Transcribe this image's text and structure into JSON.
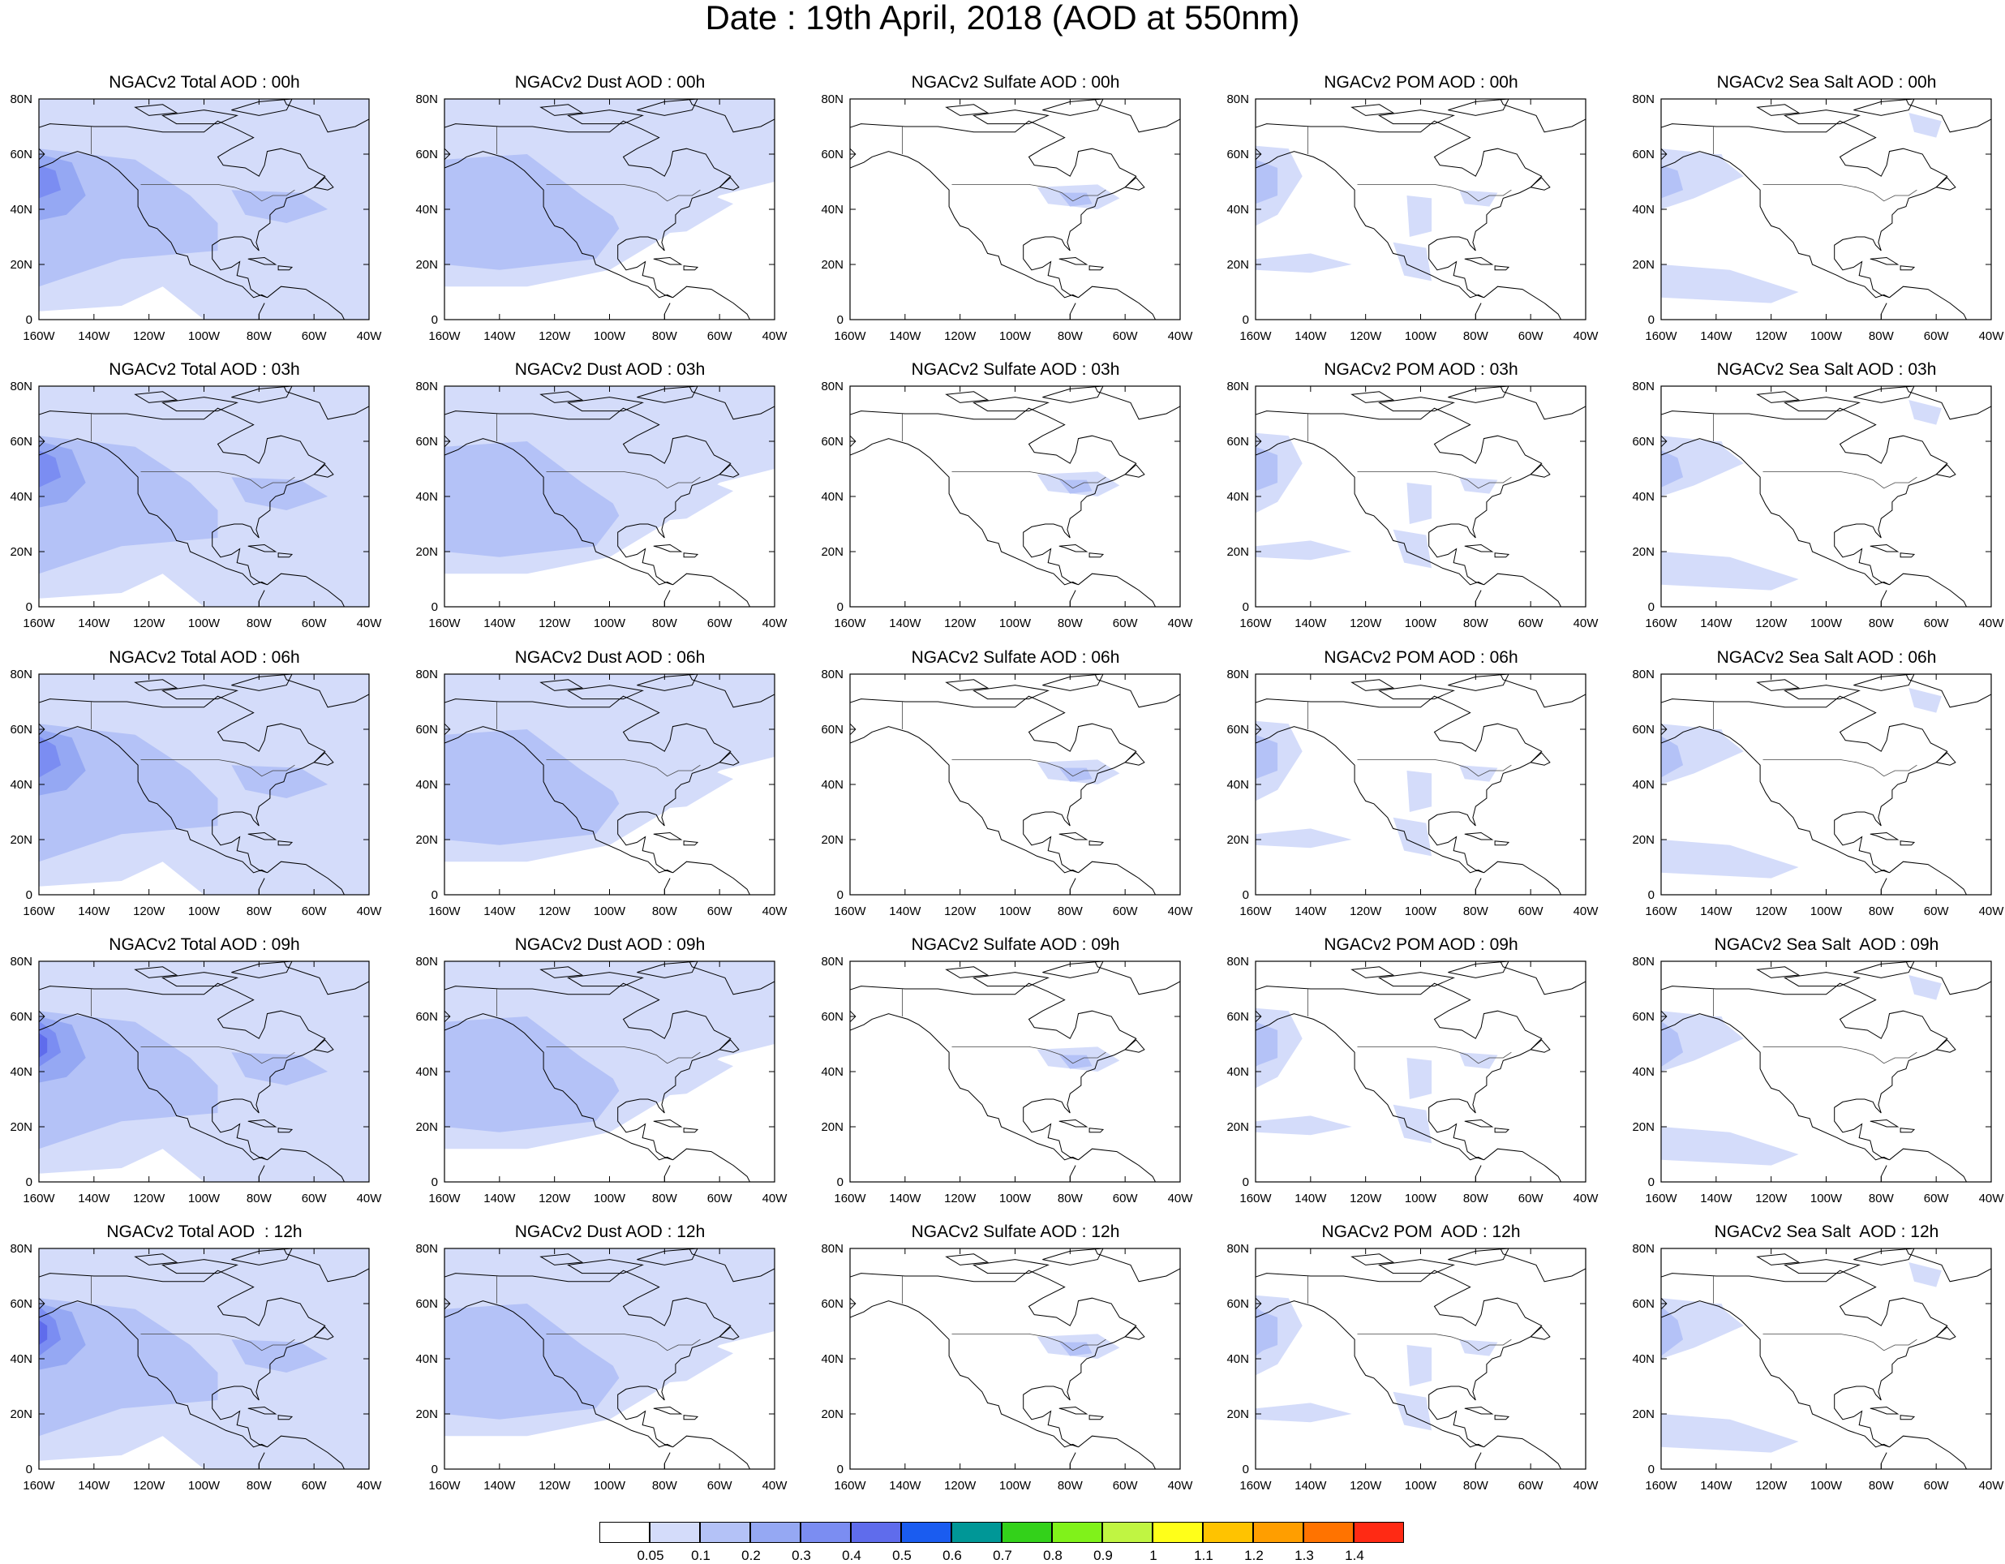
{
  "title": "Date : 19th April, 2018 (AOD at 550nm)",
  "lon_ticks": [
    "160W",
    "140W",
    "120W",
    "100W",
    "80W",
    "60W",
    "40W"
  ],
  "lat_ticks": [
    "80N",
    "60N",
    "40N",
    "20N",
    "0"
  ],
  "rows": [
    [
      "NGACv2 Total AOD : 00h",
      "NGACv2 Dust AOD : 00h",
      "NGACv2 Sulfate AOD : 00h",
      "NGACv2 POM AOD : 00h",
      "NGACv2 Sea Salt AOD : 00h"
    ],
    [
      "NGACv2 Total AOD : 03h",
      "NGACv2 Dust AOD : 03h",
      "NGACv2 Sulfate AOD : 03h",
      "NGACv2 POM AOD : 03h",
      "NGACv2 Sea Salt AOD : 03h"
    ],
    [
      "NGACv2 Total AOD : 06h",
      "NGACv2 Dust AOD : 06h",
      "NGACv2 Sulfate AOD : 06h",
      "NGACv2 POM AOD : 06h",
      "NGACv2 Sea Salt AOD : 06h"
    ],
    [
      "NGACv2 Total AOD : 09h",
      "NGACv2 Dust AOD : 09h",
      "NGACv2 Sulfate AOD : 09h",
      "NGACv2 POM AOD : 09h",
      "NGACv2 Sea Salt  AOD : 09h"
    ],
    [
      "NGACv2 Total AOD  : 12h",
      "NGACv2 Dust AOD : 12h",
      "NGACv2 Sulfate AOD : 12h",
      "NGACv2 POM  AOD : 12h",
      "NGACv2 Sea Salt  AOD : 12h"
    ]
  ],
  "colorbar": {
    "colors": [
      "#ffffff",
      "#d4dcfa",
      "#b4c2f7",
      "#95a8f3",
      "#7b8df2",
      "#5f6cec",
      "#1a5cf0",
      "#009797",
      "#33d11a",
      "#80f21a",
      "#c0f542",
      "#ffff19",
      "#ffc300",
      "#ff9e00",
      "#ff7300",
      "#ff2a14"
    ],
    "labels": [
      "0.05",
      "0.1",
      "0.2",
      "0.3",
      "0.4",
      "0.5",
      "0.6",
      "0.7",
      "0.8",
      "0.9",
      "1",
      "1.1",
      "1.2",
      "1.3",
      "1.4"
    ]
  }
}
